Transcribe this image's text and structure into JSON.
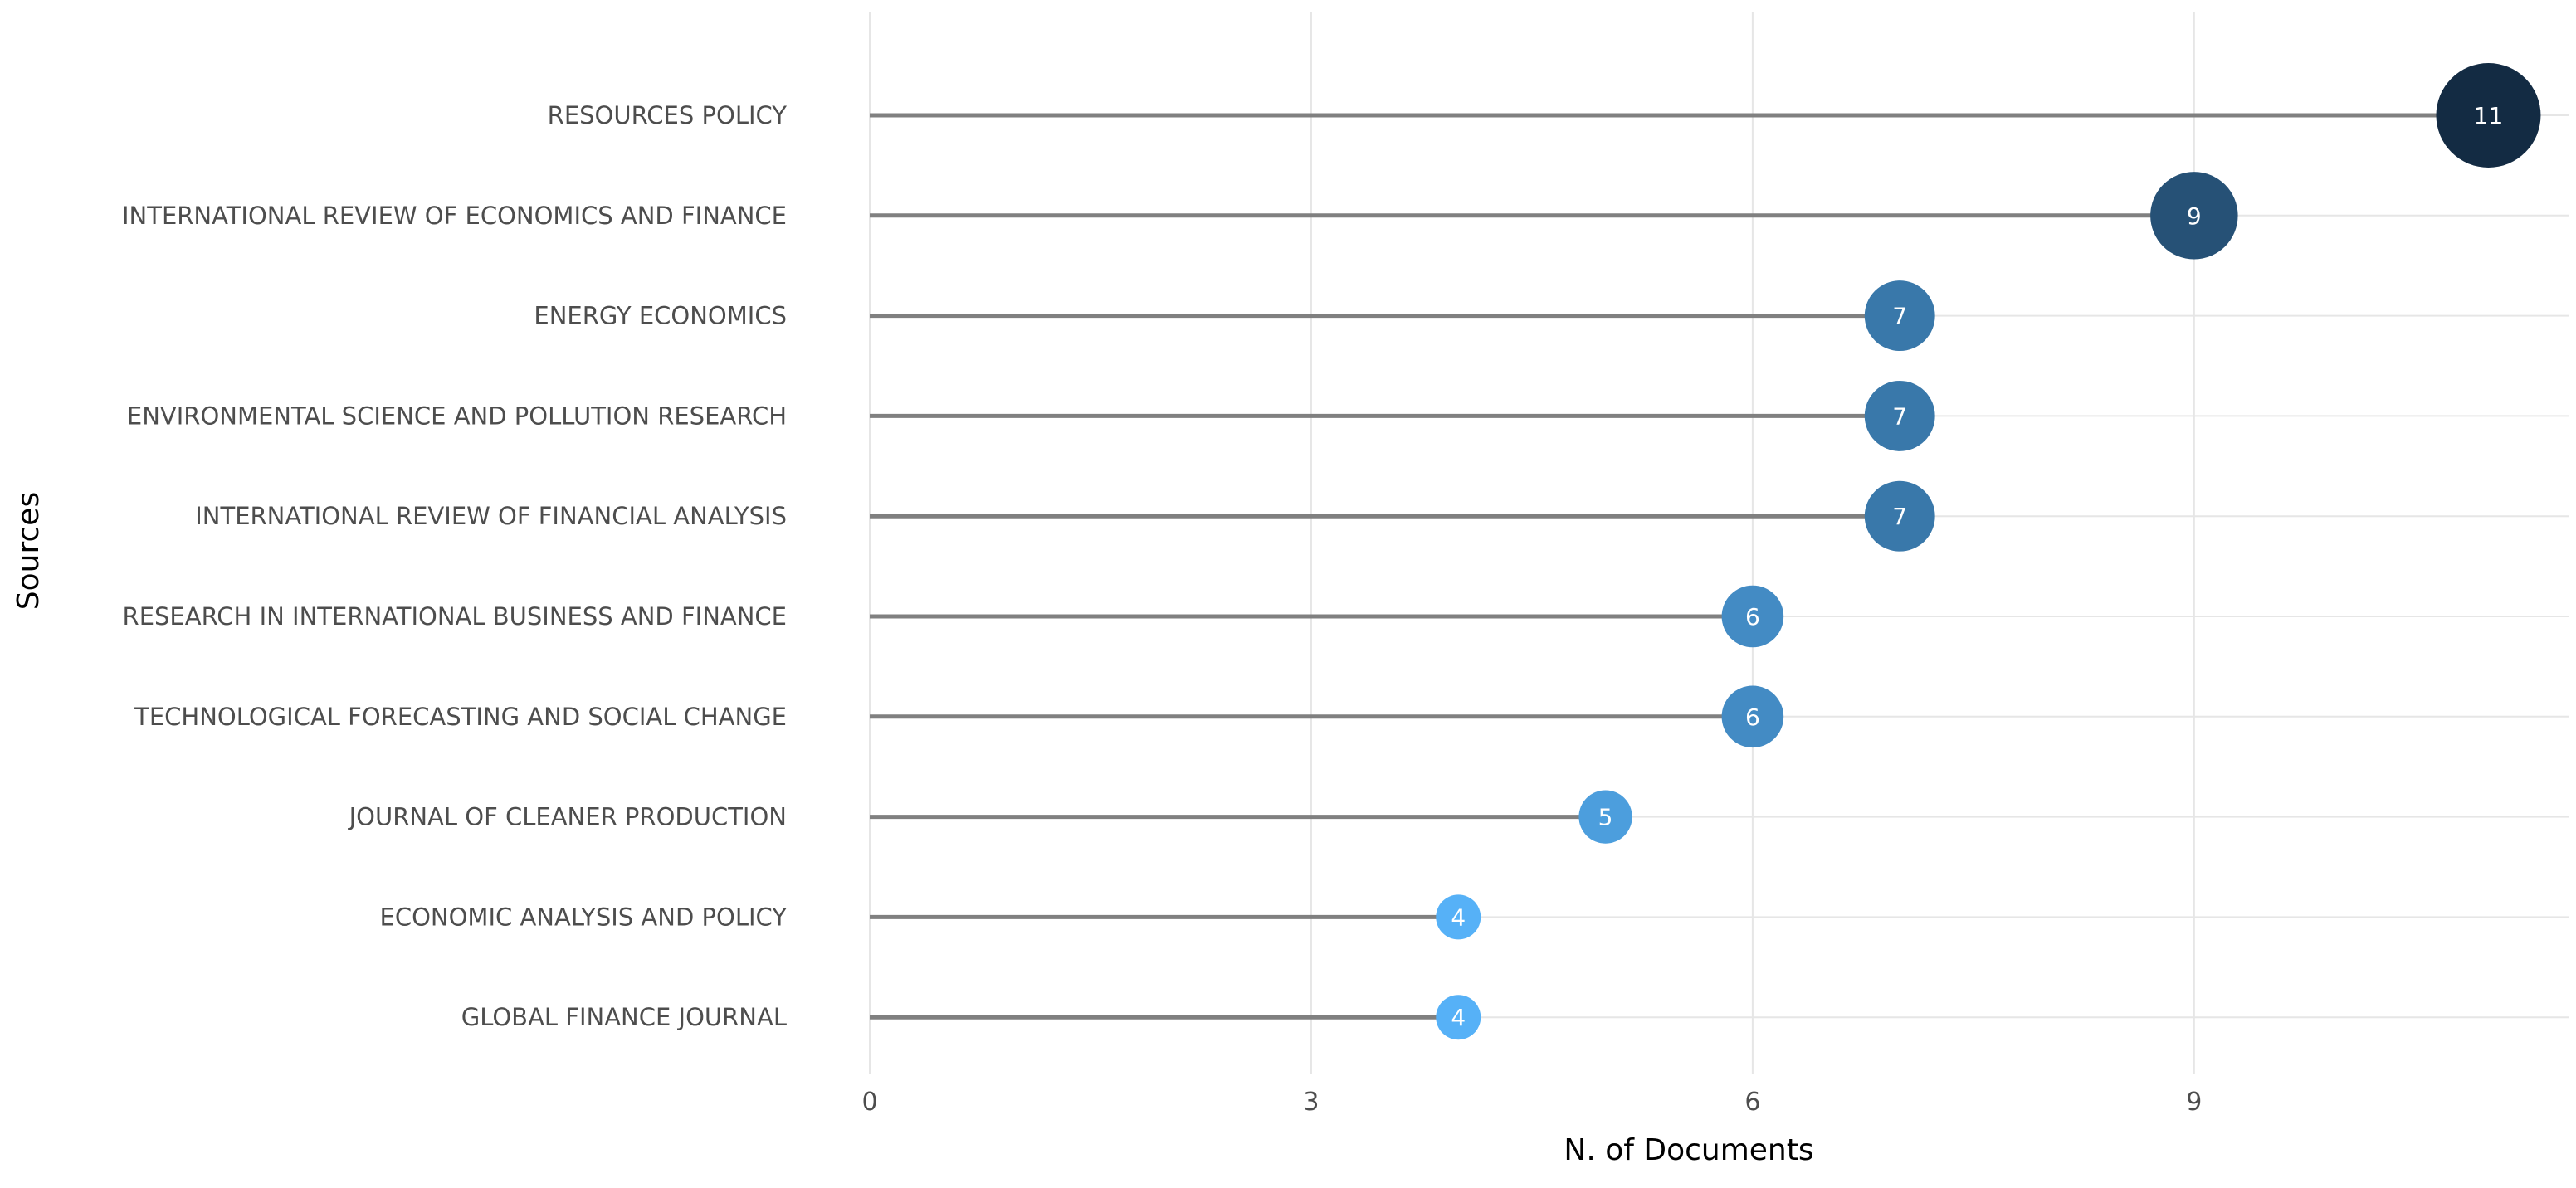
{
  "chart_data": {
    "type": "lollipop",
    "xlabel": "N. of Documents",
    "ylabel": "Sources",
    "xlim": [
      0,
      11.55
    ],
    "x_ticks": [
      0,
      3,
      6,
      9
    ],
    "x_tick_labels": [
      "0",
      "3",
      "6",
      "9"
    ],
    "grid": true,
    "legend": "none",
    "categories": [
      "RESOURCES POLICY",
      "INTERNATIONAL REVIEW OF ECONOMICS AND FINANCE",
      "ENERGY ECONOMICS",
      "ENVIRONMENTAL SCIENCE AND POLLUTION RESEARCH",
      "INTERNATIONAL REVIEW OF FINANCIAL ANALYSIS",
      "RESEARCH IN INTERNATIONAL BUSINESS AND FINANCE",
      "TECHNOLOGICAL FORECASTING AND SOCIAL CHANGE",
      "JOURNAL OF CLEANER PRODUCTION",
      "ECONOMIC ANALYSIS AND POLICY",
      "GLOBAL FINANCE JOURNAL"
    ],
    "values": [
      11,
      9,
      7,
      7,
      7,
      6,
      6,
      5,
      4,
      4
    ],
    "value_labels": [
      "11",
      "9",
      "7",
      "7",
      "7",
      "6",
      "6",
      "5",
      "4",
      "4"
    ],
    "colors": {
      "value_low": "#56b1f7",
      "value_high": "#132b43",
      "stem": "#808080",
      "grid": "#e6e6e6",
      "point_label": "#ffffff"
    }
  }
}
